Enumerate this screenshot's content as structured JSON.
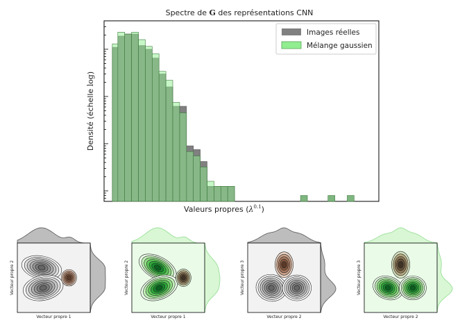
{
  "chart_data": [
    {
      "type": "bar",
      "title_prefix": "Spectre de ",
      "title_symbol": "G",
      "title_suffix": " des représentations CNN",
      "xlabel_prefix": "Valeurs propres (",
      "xlabel_base": "λ",
      "xlabel_exp": "0.1",
      "xlabel_suffix": ")",
      "ylabel_prefix": "Densité (échelle ",
      "ylabel_log": "log",
      "ylabel_suffix": ")",
      "yscale": "log",
      "xlim": [
        0.0,
        1.0
      ],
      "ylim": [
        0.0006,
        4.0
      ],
      "grid": false,
      "legend_position": "top-right",
      "bin_edges": [
        0.03,
        0.05,
        0.075,
        0.1,
        0.125,
        0.15,
        0.175,
        0.2,
        0.225,
        0.25,
        0.275,
        0.3,
        0.325,
        0.35,
        0.375,
        0.4,
        0.425,
        0.45,
        0.475
      ],
      "series": [
        {
          "name": "Images réelles",
          "color": "#808080",
          "values": [
            1.1,
            1.9,
            2.1,
            2.1,
            1.2,
            1.0,
            0.65,
            0.3,
            0.16,
            0.062,
            0.062,
            0.009,
            0.0075,
            0.0042,
            0.00125,
            0.00125,
            0.00125,
            0.00125
          ]
        },
        {
          "name": "Mélange gaussien",
          "color": "#90ee90",
          "values": [
            1.3,
            2.3,
            2.1,
            2.3,
            1.6,
            1.15,
            0.8,
            0.34,
            0.22,
            0.075,
            0.045,
            0.0068,
            0.0055,
            0.0032,
            0.0016,
            0.00125,
            0.00125,
            0.00125
          ]
        }
      ],
      "outlier_bins": [
        {
          "x0": 0.715,
          "x1": 0.74,
          "value": 0.0008
        },
        {
          "x0": 0.815,
          "x1": 0.84,
          "value": 0.0008
        },
        {
          "x0": 0.885,
          "x1": 0.91,
          "value": 0.0008
        }
      ]
    },
    {
      "type": "contour",
      "xlabel": "Vecteur propre 1",
      "ylabel": "Vecteur propre 2",
      "style": "Images réelles",
      "clusters": [
        {
          "x": -0.4,
          "y": 0.35,
          "sx": 0.4,
          "sy": 0.23,
          "rot": -12,
          "weight": 1.0
        },
        {
          "x": -0.35,
          "y": -0.35,
          "sx": 0.4,
          "sy": 0.25,
          "rot": 12,
          "weight": 1.0
        },
        {
          "x": 0.5,
          "y": 0.0,
          "sx": 0.14,
          "sy": 0.16,
          "rot": 0,
          "weight": 0.9
        }
      ]
    },
    {
      "type": "contour",
      "xlabel": "Vecteur propre 1",
      "ylabel": "Vecteur propre 2",
      "style": "Mélange gaussien",
      "clusters": [
        {
          "x": -0.35,
          "y": 0.35,
          "sx": 0.4,
          "sy": 0.22,
          "rot": -28,
          "weight": 1.0
        },
        {
          "x": -0.3,
          "y": -0.35,
          "sx": 0.38,
          "sy": 0.23,
          "rot": 22,
          "weight": 1.0
        },
        {
          "x": 0.5,
          "y": 0.0,
          "sx": 0.14,
          "sy": 0.17,
          "rot": 0,
          "weight": 0.9
        }
      ]
    },
    {
      "type": "contour",
      "xlabel": "Vecteur propre 2",
      "ylabel": "Vecteur propre 3",
      "style": "Images réelles",
      "clusters": [
        {
          "x": 0.0,
          "y": 0.45,
          "sx": 0.17,
          "sy": 0.26,
          "rot": 0,
          "weight": 0.9
        },
        {
          "x": -0.42,
          "y": -0.35,
          "sx": 0.3,
          "sy": 0.27,
          "rot": -10,
          "weight": 1.0
        },
        {
          "x": 0.42,
          "y": -0.35,
          "sx": 0.28,
          "sy": 0.26,
          "rot": 0,
          "weight": 1.0
        }
      ]
    },
    {
      "type": "contour",
      "xlabel": "Vecteur propre 2",
      "ylabel": "Vecteur propre 3",
      "style": "Mélange gaussien",
      "clusters": [
        {
          "x": 0.0,
          "y": 0.45,
          "sx": 0.17,
          "sy": 0.27,
          "rot": 0,
          "weight": 0.9
        },
        {
          "x": -0.42,
          "y": -0.35,
          "sx": 0.3,
          "sy": 0.23,
          "rot": -20,
          "weight": 1.0
        },
        {
          "x": 0.4,
          "y": -0.35,
          "sx": 0.26,
          "sy": 0.24,
          "rot": 0,
          "weight": 1.0
        }
      ]
    }
  ]
}
